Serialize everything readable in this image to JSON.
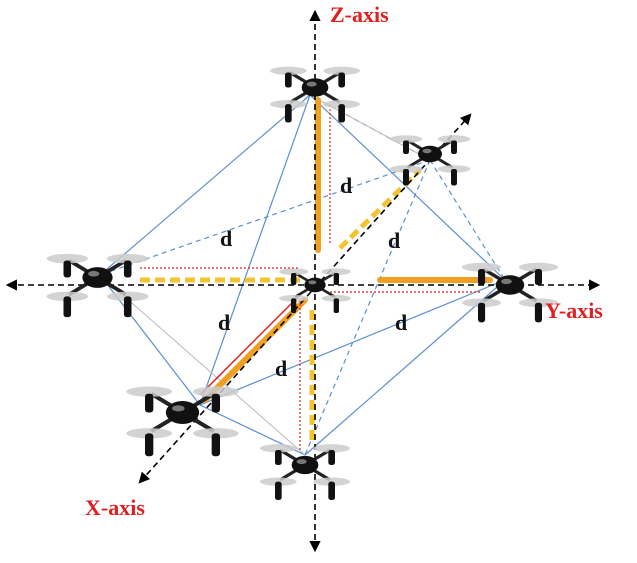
{
  "axes": {
    "z": "Z-axis",
    "y": "Y-axis",
    "x": "X-axis"
  },
  "distance_labels": [
    "d",
    "d",
    "d",
    "d",
    "d",
    "d"
  ]
}
